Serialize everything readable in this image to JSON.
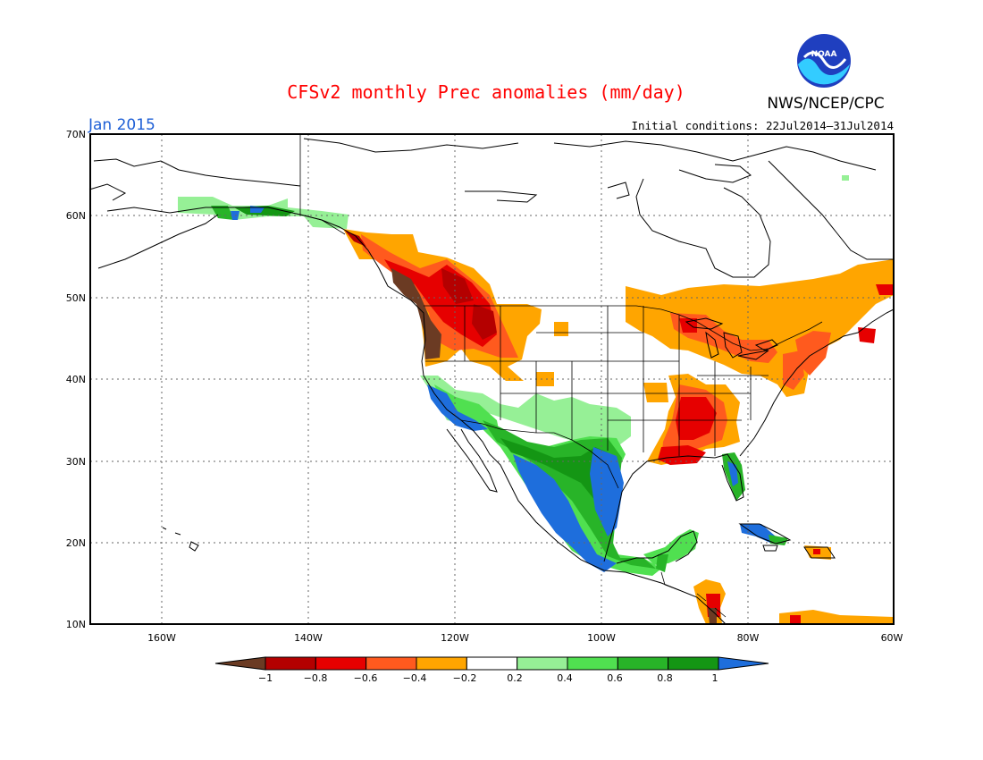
{
  "title": "CFSv2 monthly Prec anomalies (mm/day)",
  "month_label": "Jan 2015",
  "agency": "NWS/NCEP/CPC",
  "logo_text": "NOAA",
  "initial_conditions": "Initial conditions: 22Jul2014–31Jul2014",
  "colors": {
    "title": "#ff0000",
    "month": "#1e5fd6",
    "logo_blue": "#1f3fbf",
    "logo_cyan": "#33ccff",
    "coast": "#000000"
  },
  "lat_labels": [
    "70N",
    "60N",
    "50N",
    "40N",
    "30N",
    "20N",
    "10N"
  ],
  "lon_labels": [
    "160W",
    "140W",
    "120W",
    "100W",
    "80W",
    "60W"
  ],
  "colorbar": {
    "labels": [
      "−1",
      "−0.8",
      "−0.6",
      "−0.4",
      "−0.2",
      "0.2",
      "0.4",
      "0.6",
      "0.8",
      "1"
    ],
    "colors": [
      "#6b3b23",
      "#b40000",
      "#e60000",
      "#ff5a1e",
      "#ffa500",
      "#ffffff",
      "#96f096",
      "#50e050",
      "#28b428",
      "#149614",
      "#1e6edc"
    ]
  },
  "anomaly_regions": [
    {
      "category": "-1",
      "color": "#6b3b23",
      "region": "Pacific Northwest coast"
    },
    {
      "category": "-0.8",
      "color": "#b40000",
      "region": "Interior Northwest / British Columbia"
    },
    {
      "category": "-0.6",
      "color": "#e60000",
      "region": "Lower Mississippi valley / Gulf coast"
    },
    {
      "category": "-0.4",
      "color": "#ff5a1e",
      "region": "Southeast US / Great Lakes"
    },
    {
      "category": "-0.2",
      "color": "#ffa500",
      "region": "Eastern Canada / Northeast US / Intermountain West"
    },
    {
      "category": "0.2",
      "color": "#96f096",
      "region": "California / Alaska"
    },
    {
      "category": "0.4",
      "color": "#50e050",
      "region": "Southwest US / Northern Mexico"
    },
    {
      "category": "0.6",
      "color": "#28b428",
      "region": "Mexico"
    },
    {
      "category": "0.8",
      "color": "#149614",
      "region": "Southern Texas / Mexico"
    },
    {
      "category": "1",
      "color": "#1e6edc",
      "region": "Western Mexico coast / Texas Gulf coast / Florida"
    }
  ]
}
